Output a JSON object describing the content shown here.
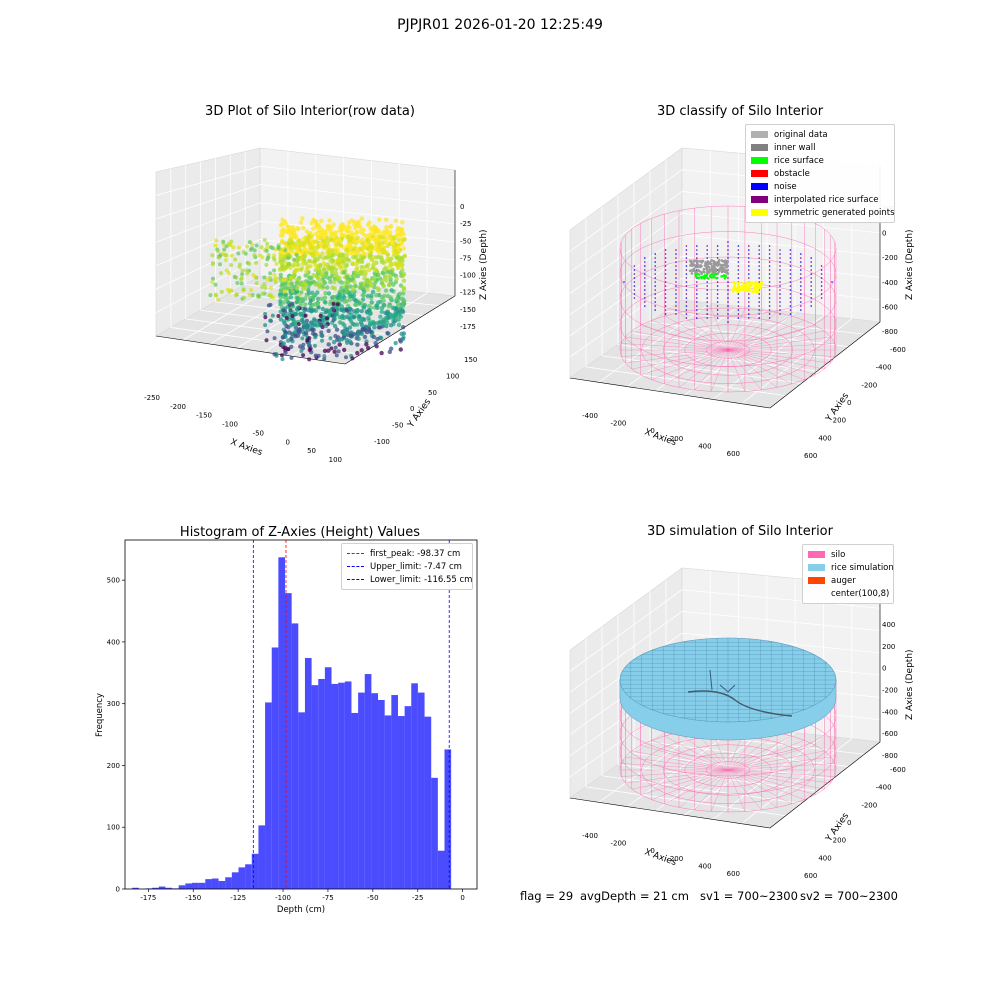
{
  "figure_title": "PJPJR01 2026-01-20 12:25:49",
  "panel_raw": {
    "title": "3D Plot of Silo Interior(row data)",
    "xlabel": "X Axies",
    "ylabel": "Y Axies",
    "zlabel": "Z Axies (Depth)",
    "xticks": [
      "-250",
      "-200",
      "-150",
      "-100",
      "-50",
      "0",
      "50",
      "100"
    ],
    "yticks": [
      "-100",
      "-50",
      "0",
      "50",
      "100",
      "150"
    ],
    "zticks": [
      "0",
      "-25",
      "-50",
      "-75",
      "-100",
      "-125",
      "-150",
      "-175"
    ]
  },
  "panel_classify": {
    "title": "3D classify of Silo Interior",
    "xlabel": "X Axies",
    "ylabel": "Y Axies",
    "zlabel": "Z Axies (Depth)",
    "xticks": [
      "-400",
      "-200",
      "0",
      "200",
      "400",
      "600"
    ],
    "yticks": [
      "600",
      "400",
      "200",
      "0",
      "-200",
      "-400",
      "-600"
    ],
    "zticks": [
      "200",
      "0",
      "-200",
      "-400",
      "-600",
      "-800"
    ],
    "legend": [
      {
        "label": "original data",
        "color": "#b0b0b0"
      },
      {
        "label": "inner wall",
        "color": "#808080"
      },
      {
        "label": "rice surface",
        "color": "#00ff00"
      },
      {
        "label": "obstacle",
        "color": "#ff0000"
      },
      {
        "label": "noise",
        "color": "#0000ff"
      },
      {
        "label": "interpolated rice surface",
        "color": "#800080"
      },
      {
        "label": "symmetric generated points",
        "color": "#ffff00"
      }
    ]
  },
  "panel_sim": {
    "title": "3D simulation of Silo Interior",
    "xlabel": "X Axies",
    "ylabel": "Y Axies",
    "zlabel": "Z Axies (Depth)",
    "xticks": [
      "-400",
      "-200",
      "0",
      "200",
      "400",
      "600"
    ],
    "yticks": [
      "600",
      "400",
      "200",
      "0",
      "-200",
      "-400",
      "-600"
    ],
    "zticks": [
      "400",
      "200",
      "0",
      "-200",
      "-400",
      "-600",
      "-800"
    ],
    "legend": [
      {
        "label": "silo",
        "color": "#ff69b4"
      },
      {
        "label": "rice simulation",
        "color": "#87ceeb"
      },
      {
        "label": "auger",
        "color": "#ff4500"
      },
      {
        "label": "center(100,8)",
        "color": ""
      }
    ]
  },
  "status": {
    "flag": "flag = 29",
    "avg_depth": "avgDepth = 21 cm",
    "sv1": "sv1 = 700~2300",
    "sv2": "sv2 = 700~2300"
  },
  "chart_data": [
    {
      "type": "scatter",
      "title": "3D Plot of Silo Interior(row data)",
      "xlabel": "X Axies",
      "ylabel": "Y Axies",
      "zlabel": "Z Axies (Depth)",
      "xlim": [
        -280,
        100
      ],
      "ylim": [
        -120,
        170
      ],
      "zlim": [
        -185,
        5
      ],
      "colormap": "viridis"
    },
    {
      "type": "scatter",
      "title": "3D classify of Silo Interior",
      "xlabel": "X Axies",
      "ylabel": "Y Axies",
      "zlabel": "Z Axies (Depth)",
      "series": [
        {
          "name": "original data"
        },
        {
          "name": "inner wall"
        },
        {
          "name": "rice surface"
        },
        {
          "name": "obstacle"
        },
        {
          "name": "noise"
        },
        {
          "name": "interpolated rice surface"
        },
        {
          "name": "symmetric generated points"
        }
      ]
    },
    {
      "type": "bar",
      "title": "Histogram of Z-Axies (Height) Values",
      "xlabel": "Depth (cm)",
      "ylabel": "Frequency",
      "xlim": [
        -188,
        8
      ],
      "ylim": [
        0,
        565
      ],
      "bin_start": -184,
      "bin_width": 3.7,
      "values": [
        2,
        0,
        1,
        2,
        4,
        2,
        1,
        6,
        9,
        10,
        10,
        16,
        17,
        13,
        19,
        27,
        35,
        40,
        57,
        103,
        302,
        391,
        537,
        479,
        430,
        286,
        374,
        330,
        340,
        359,
        332,
        334,
        336,
        285,
        318,
        348,
        317,
        306,
        281,
        314,
        280,
        296,
        333,
        318,
        279,
        180,
        62,
        226
      ],
      "xticks": [
        -175,
        -150,
        -125,
        -100,
        -75,
        -50,
        -25,
        0
      ],
      "yticks": [
        0,
        100,
        200,
        300,
        400,
        500
      ],
      "lines": [
        {
          "label": "first_peak: -98.37 cm",
          "x": -98.37,
          "color": "#ff0000"
        },
        {
          "label": "Upper_limit: -7.47 cm",
          "x": -7.47,
          "color": "#0000ff"
        },
        {
          "label": "Lower_limit: -116.55 cm",
          "x": -116.55,
          "color": "#0000ff"
        }
      ]
    },
    {
      "type": "scatter",
      "title": "3D simulation of Silo Interior",
      "xlabel": "X Axies",
      "ylabel": "Y Axies",
      "zlabel": "Z Axies (Depth)",
      "series": [
        {
          "name": "silo"
        },
        {
          "name": "rice simulation"
        },
        {
          "name": "auger"
        },
        {
          "name": "center(100,8)"
        }
      ]
    }
  ]
}
